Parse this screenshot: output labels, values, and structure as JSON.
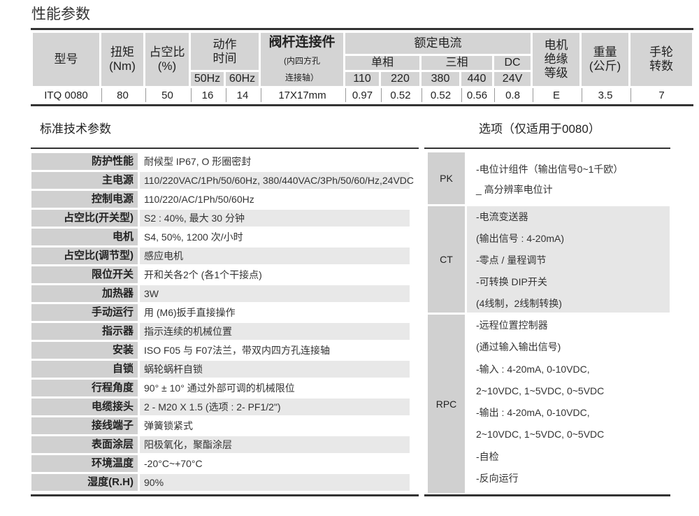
{
  "title": "性能参数",
  "perf_table": {
    "headers": {
      "model": "型号",
      "torque": "扭矩",
      "torque_unit": "(Nm)",
      "duty": "占空比",
      "duty_unit": "(%)",
      "action_time": "动作\n时间",
      "action_time_1": "动作",
      "action_time_2": "时间",
      "hz50": "50Hz",
      "hz60": "60Hz",
      "stem": "阀杆连接件",
      "stem_sub1": "(内四方孔",
      "stem_sub2": "连接轴）",
      "current": "额定电流",
      "single": "单相",
      "three": "三相",
      "dc": "DC",
      "v110": "110",
      "v220": "220",
      "v380": "380",
      "v440": "440",
      "v24": "24V",
      "insul_1": "电机",
      "insul_2": "绝缘",
      "insul_3": "等级",
      "weight_1": "重量",
      "weight_2": "(公斤)",
      "hand_1": "手轮",
      "hand_2": "转数"
    },
    "row": [
      "ITQ 0080",
      "80",
      "50",
      "16",
      "14",
      "17X17mm",
      "0.97",
      "0.52",
      "0.52",
      "0.56",
      "0.8",
      "E",
      "3.5",
      "7"
    ]
  },
  "std_title": "标准技术参数",
  "std_rows": [
    {
      "label": "防护性能",
      "value": "耐候型  IP67, O 形圈密封"
    },
    {
      "label": "主电源",
      "value": "110/220VAC/1Ph/50/60Hz, 380/440VAC/3Ph/50/60/Hz,24VDC"
    },
    {
      "label": "控制电源",
      "value": "110/220/AC/1Ph/50/60Hz"
    },
    {
      "label": "占空比(开关型)",
      "value": "S2 : 40%, 最大 30 分钟"
    },
    {
      "label": "电机",
      "value": "S4, 50%, 1200 次/小时"
    },
    {
      "label": "占空比(调节型)",
      "value": "感应电机"
    },
    {
      "label": "限位开关",
      "value": "开和关各2个 (各1个干接点)"
    },
    {
      "label": "加热器",
      "value": "3W"
    },
    {
      "label": "手动运行",
      "value": "用 (M6)扳手直接操作"
    },
    {
      "label": "指示器",
      "value": "指示连续的机械位置"
    },
    {
      "label": "安装",
      "value": "ISO F05 与 F07法兰，带双内四方孔连接轴"
    },
    {
      "label": "自锁",
      "value": "蜗轮蜗杆自锁"
    },
    {
      "label": "行程角度",
      "value": "90° ± 10° 通过外部可调的机械限位"
    },
    {
      "label": "电缆接头",
      "value": "2 - M20 X 1.5 (选项 : 2- PF1/2\")"
    },
    {
      "label": "接线端子",
      "value": "弹簧锁紧式"
    },
    {
      "label": "表面涂层",
      "value": "阳极氧化，聚酯涂层"
    },
    {
      "label": "环境温度",
      "value": "-20°C~+70°C"
    },
    {
      "label": "湿度(R.H)",
      "value": "90%"
    }
  ],
  "opt_title": "选项（仅适用于0080）",
  "options": [
    {
      "code": "PK",
      "lines": [
        "-电位计组件（输出信号0~1千欧）",
        "_ 高分辨率电位计"
      ]
    },
    {
      "code": "CT",
      "lines": [
        "-电流变送器",
        "(输出信号 : 4-20mA)",
        "-零点 / 量程调节",
        "-可转换 DIP开关",
        "(4线制，2线制转换)"
      ]
    },
    {
      "code": "RPC",
      "lines": [
        "-远程位置控制器",
        "(通过输入输出信号)",
        "-输入 : 4-20mA, 0-10VDC,",
        "2~10VDC, 1~5VDC, 0~5VDC",
        "-输出 : 4-20mA, 0-10VDC,",
        "2~10VDC, 1~5VDC, 0~5VDC",
        "-自检",
        "-反向运行"
      ]
    }
  ]
}
